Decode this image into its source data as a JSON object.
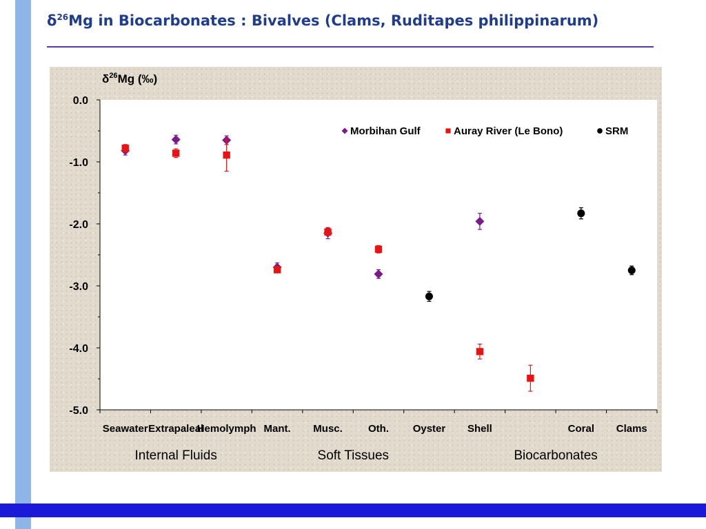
{
  "slide": {
    "title_prefix": "δ",
    "title_sup": "26",
    "title_rest": "Mg in Biocarbonates : Bivalves (Clams, Ruditapes philippinarum)"
  },
  "colors": {
    "left_bar": "#8fb4e8",
    "bottom_bar": "#1a1ad8",
    "title": "#1f3d8c",
    "title_rule": "#5533cc",
    "morbihan": "#7a1a8c",
    "auray": "#e81414",
    "srm": "#000000"
  },
  "chart_data": {
    "type": "scatter",
    "title": "",
    "ylabel_prefix": "δ",
    "ylabel_sup": "26",
    "ylabel_rest": "Mg (‰)",
    "ylim": [
      -5.0,
      0.0
    ],
    "yticks": [
      0.0,
      -1.0,
      -2.0,
      -3.0,
      -4.0,
      -5.0
    ],
    "ytick_labels": [
      "0.0",
      "-1.0",
      "-2.0",
      "-3.0",
      "-4.0",
      "-5.0"
    ],
    "categories": [
      "Seawater",
      "Extrapaleal",
      "Hemolymph",
      "Mant.",
      "Musc.",
      "Oth.",
      "Oyster",
      "Shell",
      "",
      "Coral",
      "Clams"
    ],
    "groups": [
      {
        "label": "Internal Fluids",
        "from": 0,
        "to": 2
      },
      {
        "label": "Soft Tissues",
        "from": 3,
        "to": 6
      },
      {
        "label": "Biocarbonates",
        "from": 7,
        "to": 10
      }
    ],
    "grid": false,
    "legend_position": "top-right",
    "series": [
      {
        "name": "Morbihan Gulf",
        "marker": "diamond",
        "color": "#7a1a8c",
        "points": [
          {
            "x": 0,
            "y": -0.82,
            "err": 0.07
          },
          {
            "x": 1,
            "y": -0.64,
            "err": 0.07
          },
          {
            "x": 2,
            "y": -0.65,
            "err": 0.07
          },
          {
            "x": 3,
            "y": -2.7,
            "err": 0.07
          },
          {
            "x": 4,
            "y": -2.15,
            "err": 0.09
          },
          {
            "x": 5,
            "y": -2.81,
            "err": 0.07
          },
          {
            "x": 7,
            "y": -1.96,
            "err": 0.13
          }
        ]
      },
      {
        "name": "Auray River (Le Bono)",
        "marker": "square",
        "color": "#e81414",
        "points": [
          {
            "x": 0,
            "y": -0.78,
            "err": 0.06
          },
          {
            "x": 1,
            "y": -0.86,
            "err": 0.07
          },
          {
            "x": 2,
            "y": -0.89,
            "err": 0.26
          },
          {
            "x": 3,
            "y": -2.74,
            "err": 0.05
          },
          {
            "x": 4,
            "y": -2.13,
            "err": 0.06
          },
          {
            "x": 5,
            "y": -2.41,
            "err": 0.06
          },
          {
            "x": 7,
            "y": -4.06,
            "err": 0.12
          },
          {
            "x": 8,
            "y": -4.49,
            "err": 0.21
          }
        ]
      },
      {
        "name": "SRM",
        "marker": "circle",
        "color": "#000000",
        "points": [
          {
            "x": 6,
            "y": -3.17,
            "err": 0.08
          },
          {
            "x": 9,
            "y": -1.83,
            "err": 0.09
          },
          {
            "x": 10,
            "y": -2.75,
            "err": 0.07
          }
        ]
      }
    ]
  }
}
